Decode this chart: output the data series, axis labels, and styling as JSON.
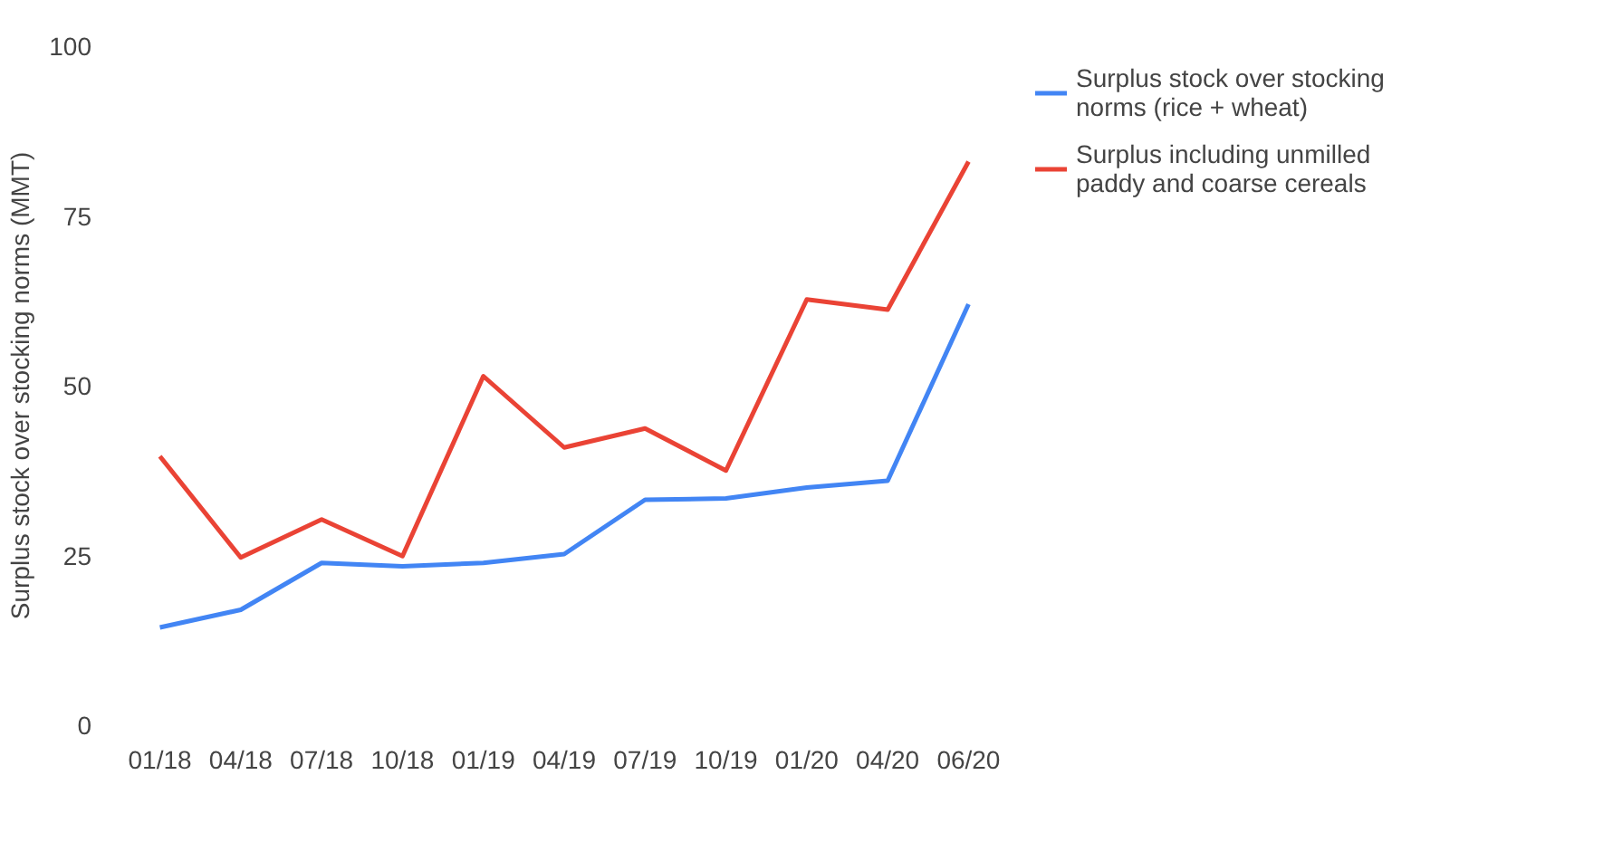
{
  "chart_data": {
    "type": "line",
    "ylabel": "Surplus stock over stocking norms (MMT)",
    "categories": [
      "01/18",
      "04/18",
      "07/18",
      "10/18",
      "01/19",
      "04/19",
      "07/19",
      "10/19",
      "01/20",
      "04/20",
      "06/20"
    ],
    "series": [
      {
        "name": "Surplus stock over stocking norms (rice + wheat)",
        "color": "#4285f4",
        "values": [
          14.4,
          17.0,
          23.9,
          23.4,
          23.9,
          25.2,
          33.2,
          33.4,
          35.0,
          36.0,
          62.0
        ]
      },
      {
        "name": "Surplus including unmilled paddy and coarse cereals",
        "color": "#ea4335",
        "values": [
          39.6,
          24.7,
          30.3,
          24.9,
          51.4,
          40.9,
          43.7,
          37.5,
          62.7,
          61.2,
          83.0
        ]
      }
    ],
    "ylim": [
      0,
      100
    ],
    "yticks": [
      0,
      25,
      50,
      75,
      100
    ],
    "legend": "top right",
    "line_style": "solid"
  }
}
